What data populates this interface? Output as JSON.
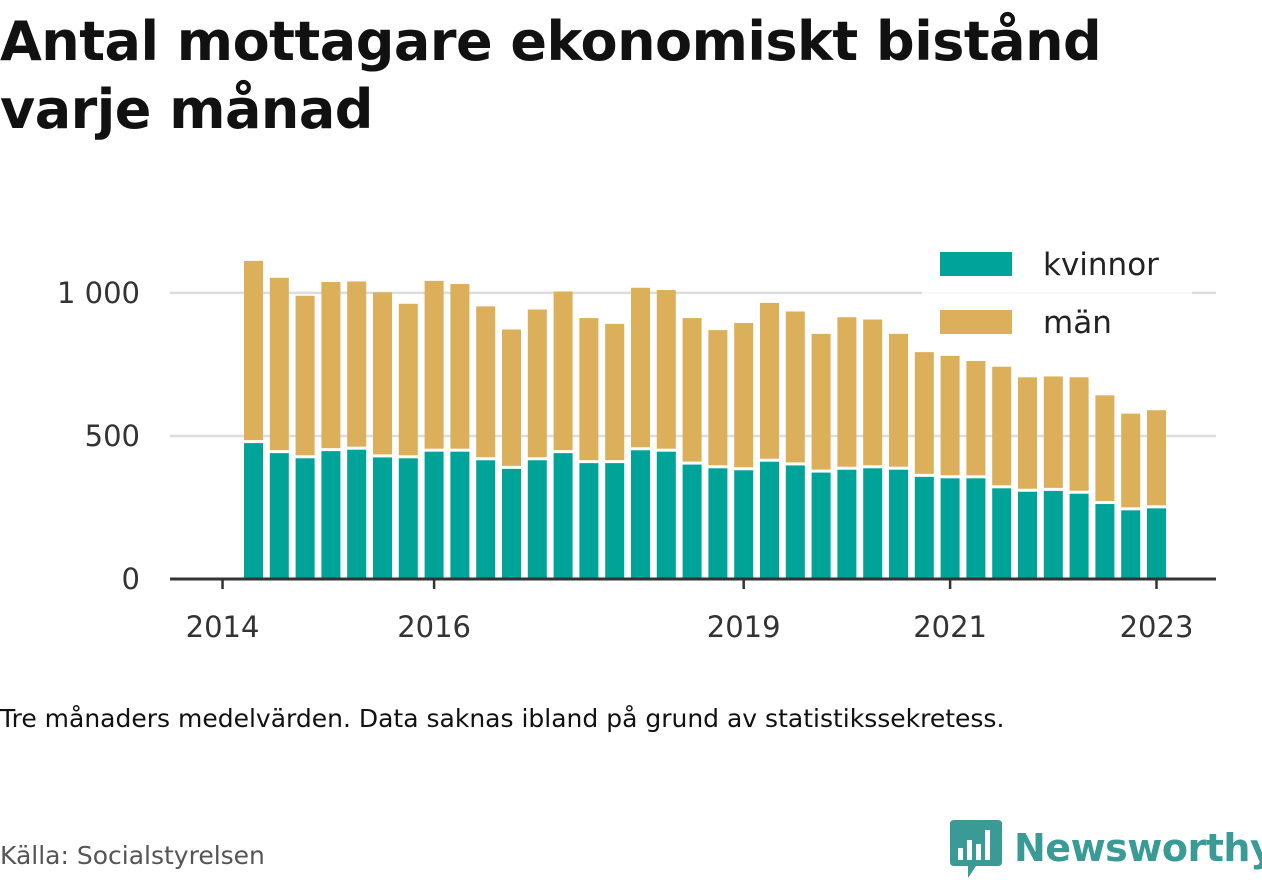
{
  "header": {
    "title": "Antal mottagare ekonomiskt bistånd varje månad"
  },
  "footer": {
    "note": "Tre månaders medelvärden. Data saknas ibland på grund av statistikssekretess.",
    "source": "Källa: Socialstyrelsen",
    "brand": "Newsworthy"
  },
  "colors": {
    "kvinnor": "#00a398",
    "man": "#dcaf5a",
    "grid": "#dddddd",
    "axis": "#333333",
    "brand": "#3a9a96"
  },
  "chart_data": {
    "type": "bar",
    "stacked": true,
    "ylim": [
      0,
      1150
    ],
    "yticks": [
      0,
      500,
      1000
    ],
    "ytick_labels": [
      "0",
      "500",
      "1 000"
    ],
    "xticks": [
      {
        "label": "2014",
        "position": -1.2
      },
      {
        "label": "2016",
        "position": 7
      },
      {
        "label": "2019",
        "position": 19
      },
      {
        "label": "2021",
        "position": 27
      },
      {
        "label": "2023",
        "position": 35
      }
    ],
    "legend": {
      "position": "top-right"
    },
    "series": [
      {
        "name": "kvinnor",
        "values": [
          475,
          440,
          422,
          447,
          452,
          425,
          422,
          445,
          445,
          415,
          385,
          415,
          440,
          405,
          405,
          450,
          445,
          400,
          387,
          380,
          410,
          397,
          372,
          382,
          387,
          382,
          357,
          352,
          352,
          317,
          305,
          308,
          298,
          262,
          240,
          247
        ]
      },
      {
        "name": "män",
        "values": [
          637,
          613,
          568,
          591,
          588,
          577,
          540,
          597,
          586,
          538,
          487,
          527,
          565,
          507,
          487,
          568,
          565,
          512,
          483,
          515,
          555,
          538,
          485,
          533,
          520,
          475,
          436,
          428,
          410,
          425,
          400,
          400,
          407,
          380,
          338,
          343
        ]
      }
    ]
  }
}
